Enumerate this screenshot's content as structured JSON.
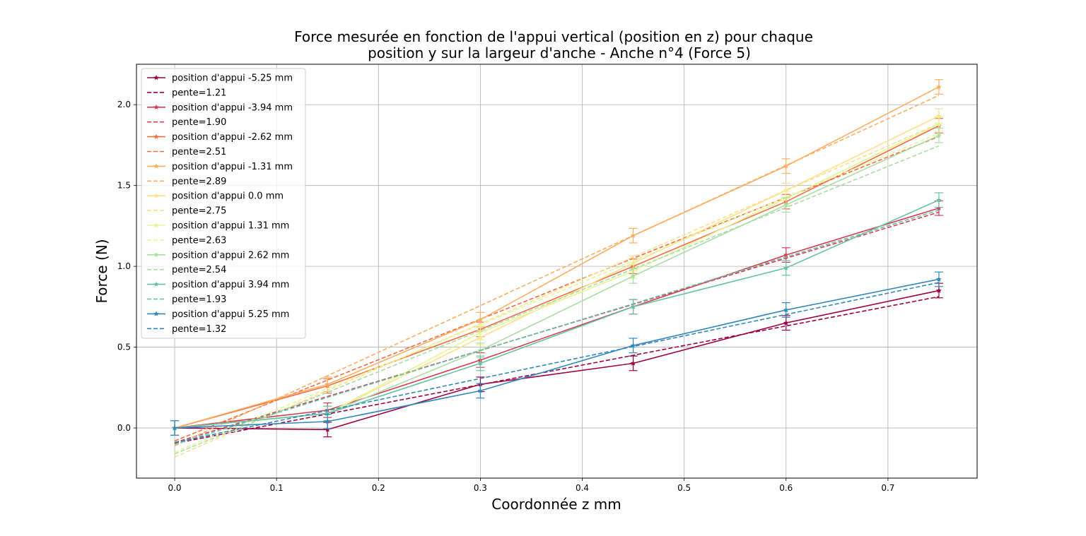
{
  "chart_data": {
    "type": "line",
    "title_line1": "Force mesurée en fonction de l'appui vertical (position en z) pour chaque",
    "title_line2": "position y sur la largeur d'anche - Anche n°4 (Force 5)",
    "xlabel": "Coordonnée z mm",
    "ylabel": "Force (N)",
    "xlim": [
      -0.0375,
      0.7875
    ],
    "ylim": [
      -0.31,
      2.25
    ],
    "xticks": [
      0.0,
      0.1,
      0.2,
      0.3,
      0.4,
      0.5,
      0.6,
      0.7
    ],
    "xtick_labels": [
      "0.0",
      "0.1",
      "0.2",
      "0.3",
      "0.4",
      "0.5",
      "0.6",
      "0.7"
    ],
    "yticks": [
      0.0,
      0.5,
      1.0,
      1.5,
      2.0
    ],
    "ytick_labels": [
      "0.0",
      "0.5",
      "1.0",
      "1.5",
      "2.0"
    ],
    "grid": true,
    "legend_position": "upper-left",
    "x": [
      0.0,
      0.15,
      0.3,
      0.45,
      0.6,
      0.75
    ],
    "series": [
      {
        "name": "position d'appui -5.25 mm",
        "color": "#9e0142",
        "values": [
          0.0,
          -0.01,
          0.27,
          0.4,
          0.65,
          0.85
        ],
        "err": 0.045,
        "fit_name": "pente=1.21",
        "slope": 1.21,
        "intercept": -0.095
      },
      {
        "name": "position d'appui -3.94 mm",
        "color": "#d53e4f",
        "values": [
          0.0,
          0.11,
          0.42,
          0.75,
          1.07,
          1.36
        ],
        "err": 0.045,
        "fit_name": "pente=1.90",
        "slope": 1.9,
        "intercept": -0.09
      },
      {
        "name": "position d'appui -2.62 mm",
        "color": "#f46d43",
        "values": [
          0.0,
          0.26,
          0.61,
          1.0,
          1.4,
          1.87
        ],
        "err": 0.045,
        "fit_name": "pente=2.51",
        "slope": 2.51,
        "intercept": -0.08
      },
      {
        "name": "position d'appui -1.31 mm",
        "color": "#fdae61",
        "values": [
          0.0,
          0.27,
          0.67,
          1.19,
          1.62,
          2.11
        ],
        "err": 0.045,
        "fit_name": "pente=2.89",
        "slope": 2.89,
        "intercept": -0.11
      },
      {
        "name": "position d'appui 0.0 mm",
        "color": "#fee08b",
        "values": [
          0.0,
          0.09,
          0.56,
          1.02,
          1.47,
          1.93
        ],
        "err": 0.045,
        "fit_name": "pente=2.75",
        "slope": 2.75,
        "intercept": -0.18
      },
      {
        "name": "position d'appui 1.31 mm",
        "color": "#e6f598",
        "values": [
          0.0,
          0.09,
          0.59,
          0.97,
          1.42,
          1.88
        ],
        "err": 0.045,
        "fit_name": "pente=2.63",
        "slope": 2.63,
        "intercept": -0.15
      },
      {
        "name": "position d'appui 2.62 mm",
        "color": "#abdda4",
        "values": [
          0.0,
          0.09,
          0.48,
          0.94,
          1.38,
          1.81
        ],
        "err": 0.045,
        "fit_name": "pente=2.54",
        "slope": 2.54,
        "intercept": -0.16
      },
      {
        "name": "position d'appui 3.94 mm",
        "color": "#66c2a5",
        "values": [
          0.0,
          0.09,
          0.4,
          0.75,
          0.99,
          1.41
        ],
        "err": 0.045,
        "fit_name": "pente=1.93",
        "slope": 1.93,
        "intercept": -0.1
      },
      {
        "name": "position d'appui 5.25 mm",
        "color": "#3288bd",
        "values": [
          0.0,
          0.04,
          0.23,
          0.51,
          0.73,
          0.92
        ],
        "err": 0.045,
        "fit_name": "pente=1.32",
        "slope": 1.32,
        "intercept": -0.09
      }
    ]
  }
}
